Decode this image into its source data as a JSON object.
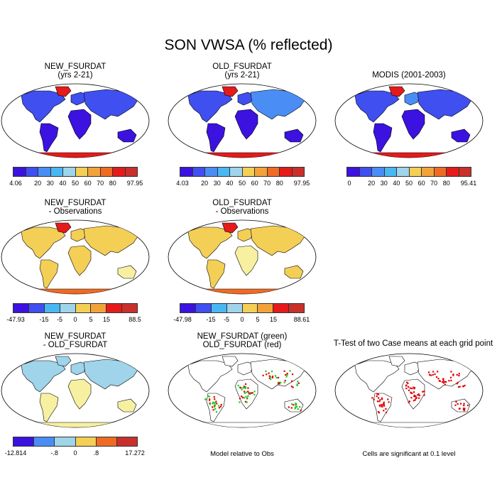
{
  "title": "SON VWSA (% reflected)",
  "colors": {
    "scale": [
      "#3b12e0",
      "#3f4ff0",
      "#4a8df5",
      "#49b8f2",
      "#9fd4ea",
      "#f7f0a0",
      "#f4cf56",
      "#f2a23a",
      "#ef6b24",
      "#e51a1a",
      "#c8302c"
    ],
    "ocean": "#ffffff",
    "green": "#1ecb1e",
    "red": "#e00000"
  },
  "panels": [
    {
      "id": "p1",
      "title1": "NEW_FSURDAT",
      "title2": "(yrs 2-21)",
      "ticks": [
        "4.06",
        "20",
        "30",
        "40",
        "50",
        "60",
        "70",
        "80",
        "97.95"
      ],
      "map": "abs"
    },
    {
      "id": "p2",
      "title1": "OLD_FSURDAT",
      "title2": "(yrs 2-21)",
      "ticks": [
        "4.03",
        "20",
        "30",
        "40",
        "50",
        "60",
        "70",
        "80",
        "97.95"
      ],
      "map": "abs"
    },
    {
      "id": "p3",
      "title1": "MODIS (2001-2003)",
      "title2": "",
      "ticks": [
        "0",
        "20",
        "30",
        "40",
        "50",
        "60",
        "70",
        "80",
        "95.41"
      ],
      "map": "abs"
    },
    {
      "id": "p4",
      "title1": "NEW_FSURDAT",
      "title2": "- Observations",
      "ticks": [
        "-47.93",
        "-15",
        "-5",
        "0",
        "5",
        "15",
        "88.5"
      ],
      "map": "diff"
    },
    {
      "id": "p5",
      "title1": "OLD_FSURDAT",
      "title2": "- Observations",
      "ticks": [
        "-47.98",
        "-15",
        "-5",
        "0",
        "5",
        "15",
        "88.61"
      ],
      "map": "diff"
    },
    {
      "id": "p6",
      "title1": "NEW_FSURDAT",
      "title2": "- OLD_FSURDAT",
      "ticks": [
        "-12.814",
        "-.8",
        "0",
        ".8",
        "17.272"
      ],
      "map": "diff2"
    },
    {
      "id": "p7",
      "title1": "NEW_FSURDAT (green)",
      "title2": "OLD_FSURDAT (red)",
      "note": "Model relative to Obs",
      "map": "gr"
    },
    {
      "id": "p8",
      "title1": "T-Test of two Case means at each grid point",
      "title2": "",
      "note": "Cells are significant at 0.1 level",
      "map": "tt"
    }
  ]
}
